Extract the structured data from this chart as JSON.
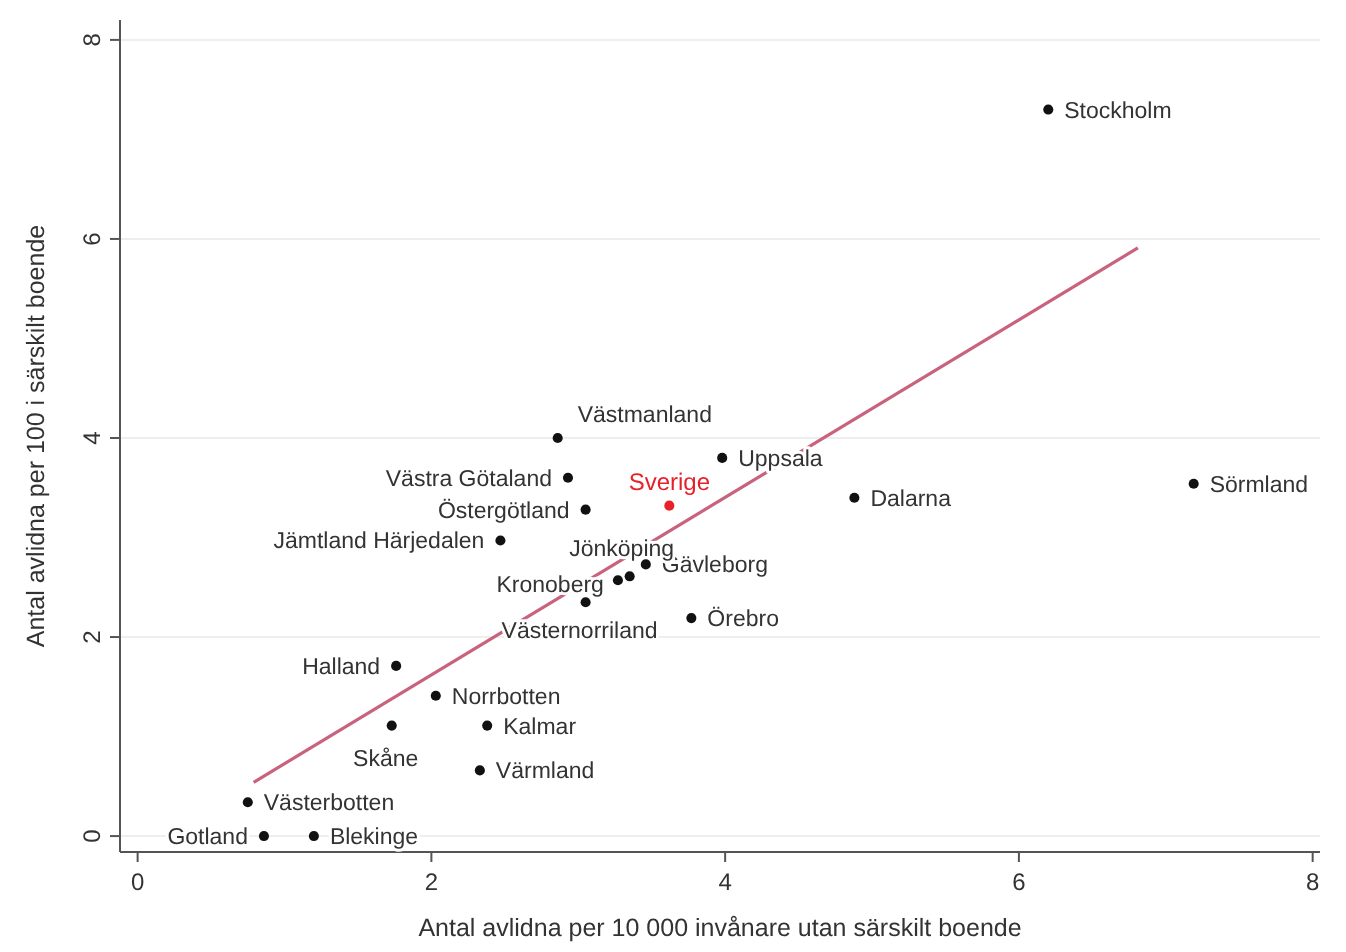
{
  "chart_data": {
    "type": "scatter",
    "xlabel": "Antal avlidna per 10 000 invånare utan särskilt boende",
    "ylabel": "Antal avlidna per 100 i särskilt boende",
    "xlim": [
      -0.12,
      8.05
    ],
    "ylim": [
      -0.16,
      8.2
    ],
    "xticks": [
      0,
      2,
      4,
      6,
      8
    ],
    "yticks": [
      0,
      2,
      4,
      6,
      8
    ],
    "grid": "y",
    "marker": "circle",
    "series": [
      {
        "color": "#111111",
        "x": [
          6.2,
          7.19,
          4.88,
          3.98,
          2.86,
          2.93,
          3.05,
          2.47,
          3.46,
          3.35,
          3.27,
          3.05,
          3.77,
          1.76,
          2.03,
          1.73,
          2.38,
          2.33,
          0.75,
          0.86,
          1.2
        ],
        "values": [
          7.3,
          3.54,
          3.4,
          3.8,
          4.0,
          3.6,
          3.28,
          2.97,
          2.73,
          2.61,
          2.57,
          2.35,
          2.19,
          1.71,
          1.41,
          1.11,
          1.11,
          0.66,
          0.34,
          0.0,
          0.0
        ]
      },
      {
        "name": "Sverige",
        "color": "#e8202a",
        "x": [
          3.62
        ],
        "values": [
          3.32
        ]
      },
      {
        "type": "line",
        "marker": "none",
        "color": "#c9627c",
        "x": [
          0.79,
          6.81
        ],
        "values": [
          0.54,
          5.91
        ]
      }
    ],
    "annotations": [
      {
        "text": "Stockholm",
        "x": 6.2,
        "y": 7.3
      },
      {
        "text": "Sörmland",
        "x": 7.19,
        "y": 3.54
      },
      {
        "text": "Dalarna",
        "x": 4.88,
        "y": 3.4
      },
      {
        "text": "Uppsala",
        "x": 3.98,
        "y": 3.8
      },
      {
        "text": "Västmanland",
        "x": 2.86,
        "y": 4.0
      },
      {
        "text": "Västra Götaland",
        "x": 2.93,
        "y": 3.6
      },
      {
        "text": "Östergötland",
        "x": 3.05,
        "y": 3.28
      },
      {
        "text": "Jämtland Härjedalen",
        "x": 2.47,
        "y": 2.97
      },
      {
        "text": "Gävleborg",
        "x": 3.46,
        "y": 2.73
      },
      {
        "text": "Jönköping",
        "x": 3.35,
        "y": 2.61
      },
      {
        "text": "Kronoberg",
        "x": 3.27,
        "y": 2.57
      },
      {
        "text": "Västernorriland",
        "x": 3.05,
        "y": 2.35
      },
      {
        "text": "Örebro",
        "x": 3.77,
        "y": 2.19
      },
      {
        "text": "Halland",
        "x": 1.76,
        "y": 1.71
      },
      {
        "text": "Norrbotten",
        "x": 2.03,
        "y": 1.41
      },
      {
        "text": "Skåne",
        "x": 1.73,
        "y": 1.11
      },
      {
        "text": "Kalmar",
        "x": 2.38,
        "y": 1.11
      },
      {
        "text": "Värmland",
        "x": 2.33,
        "y": 0.66
      },
      {
        "text": "Västerbotten",
        "x": 0.75,
        "y": 0.34
      },
      {
        "text": "Gotland",
        "x": 0.86,
        "y": 0.0
      },
      {
        "text": "Blekinge",
        "x": 1.2,
        "y": 0.0
      }
    ]
  }
}
